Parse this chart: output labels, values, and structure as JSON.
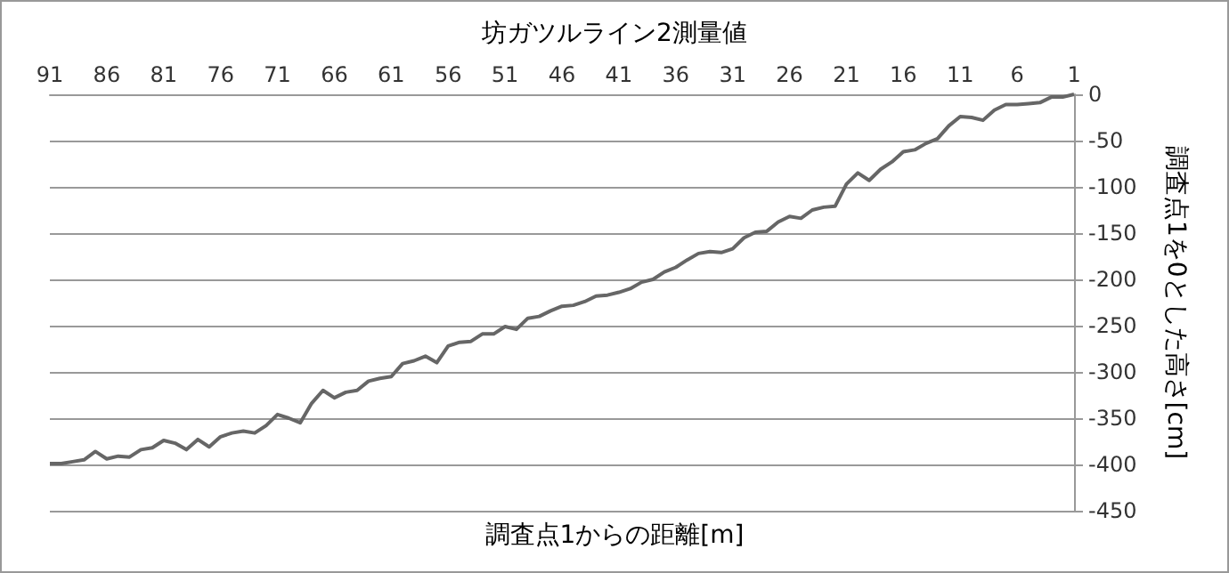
{
  "chart_data": {
    "type": "line",
    "title": "坊ガツルライン2測量値",
    "xlabel": "調査点1からの距離[m]",
    "ylabel": "調査点1を0とした高さ[cm]",
    "categories": [
      "91",
      null,
      null,
      null,
      null,
      "86",
      null,
      null,
      null,
      null,
      "81",
      null,
      null,
      null,
      null,
      "76",
      null,
      null,
      null,
      null,
      "71",
      null,
      null,
      null,
      null,
      "66",
      null,
      null,
      null,
      null,
      "61",
      null,
      null,
      null,
      null,
      "56",
      null,
      null,
      null,
      null,
      "51",
      null,
      null,
      null,
      null,
      "46",
      null,
      null,
      null,
      null,
      "41",
      null,
      null,
      null,
      null,
      "36",
      null,
      null,
      null,
      null,
      "31",
      null,
      null,
      null,
      null,
      "26",
      null,
      null,
      null,
      null,
      "21",
      null,
      null,
      null,
      null,
      "16",
      null,
      null,
      null,
      null,
      "11",
      null,
      null,
      null,
      null,
      "6",
      null,
      null,
      null,
      null,
      "1"
    ],
    "series": [
      {
        "color": "#666666",
        "values": [
          -399,
          -399,
          -397,
          -395,
          -386,
          -394,
          -391,
          -392,
          -384,
          -382,
          -374,
          -377,
          -384,
          -373,
          -381,
          -370,
          -366,
          -364,
          -366,
          -358,
          -346,
          -350,
          -355,
          -334,
          -320,
          -328,
          -322,
          -320,
          -310,
          -307,
          -305,
          -291,
          -288,
          -283,
          -290,
          -272,
          -268,
          -267,
          -259,
          -259,
          -251,
          -254,
          -242,
          -240,
          -234,
          -229,
          -228,
          -224,
          -218,
          -217,
          -214,
          -210,
          -203,
          -200,
          -192,
          -187,
          -179,
          -172,
          -170,
          -171,
          -167,
          -155,
          -149,
          -148,
          -138,
          -132,
          -134,
          -125,
          -122,
          -121,
          -97,
          -85,
          -93,
          -81,
          -73,
          -62,
          -60,
          -53,
          -48,
          -34,
          -24,
          -25,
          -28,
          -17,
          -11,
          -11,
          -10,
          -9,
          -3,
          -3,
          0
        ]
      }
    ],
    "ylim": [
      -450,
      0
    ],
    "yticks": [
      -450,
      -400,
      -350,
      -300,
      -250,
      -200,
      -150,
      -100,
      -50,
      0
    ],
    "grid": "y",
    "marker": "none",
    "line_style": "solid"
  }
}
